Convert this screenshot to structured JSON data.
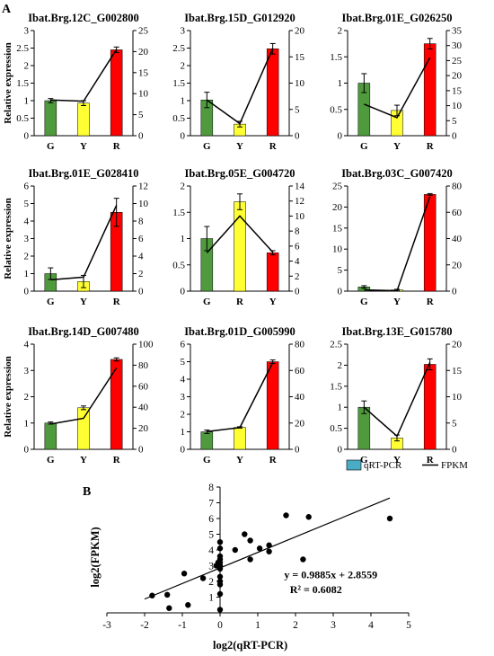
{
  "figure": {
    "panel_a_label": "A",
    "panel_b_label": "B",
    "legend": {
      "qrt_label": "qRT-PCR",
      "fpkm_label": "FPKM",
      "bar_legend_color": "#4bacc6"
    },
    "colors": {
      "G": "#4e9a3d",
      "Y": "#ffff33",
      "R": "#ff0000"
    }
  },
  "chart_data": [
    {
      "type": "bar",
      "title": "Ibat.Brg.12C_G002800",
      "ylabel": "Relative expression",
      "categories": [
        "G",
        "Y",
        "R"
      ],
      "bar_colors": [
        "G",
        "Y",
        "R"
      ],
      "values": [
        1.0,
        0.93,
        2.45
      ],
      "errors": [
        0.06,
        0.07,
        0.08
      ],
      "fpkm": [
        8.5,
        8.2,
        20.5
      ],
      "ylim": [
        0,
        3
      ],
      "yticks": [
        "0",
        "0.5",
        "1",
        "1.5",
        "2",
        "2.5",
        "3"
      ],
      "y2lim": [
        0,
        25
      ],
      "y2ticks": [
        "0",
        "5",
        "10",
        "15",
        "20",
        "25"
      ]
    },
    {
      "type": "bar",
      "title": "Ibat.Brg.15D_G012920",
      "ylabel": "",
      "categories": [
        "G",
        "Y",
        "R"
      ],
      "bar_colors": [
        "G",
        "Y",
        "R"
      ],
      "values": [
        1.02,
        0.33,
        2.48
      ],
      "errors": [
        0.22,
        0.08,
        0.15
      ],
      "fpkm": [
        6.8,
        2.3,
        16.6
      ],
      "ylim": [
        0,
        3
      ],
      "yticks": [
        "0",
        "0.5",
        "1",
        "1.5",
        "2",
        "2.5",
        "3"
      ],
      "y2lim": [
        0,
        20
      ],
      "y2ticks": [
        "0",
        "5",
        "10",
        "15",
        "20"
      ]
    },
    {
      "type": "bar",
      "title": "Ibat.Brg.01E_G026250",
      "ylabel": "",
      "categories": [
        "G",
        "Y",
        "R"
      ],
      "bar_colors": [
        "G",
        "Y",
        "R"
      ],
      "values": [
        1.0,
        0.48,
        1.75
      ],
      "errors": [
        0.18,
        0.1,
        0.1
      ],
      "fpkm": [
        10.5,
        6.0,
        26.0
      ],
      "ylim": [
        0,
        2
      ],
      "yticks": [
        "0",
        "0.5",
        "1",
        "1.5",
        "2"
      ],
      "y2lim": [
        0,
        35
      ],
      "y2ticks": [
        "0",
        "5",
        "10",
        "15",
        "20",
        "25",
        "30",
        "35"
      ]
    },
    {
      "type": "bar",
      "title": "Ibat.Brg.01E_G028410",
      "ylabel": "Relative expression",
      "categories": [
        "G",
        "Y",
        "R"
      ],
      "bar_colors": [
        "G",
        "Y",
        "R"
      ],
      "values": [
        1.0,
        0.55,
        4.5
      ],
      "errors": [
        0.33,
        0.35,
        0.8
      ],
      "fpkm": [
        1.3,
        1.6,
        9.8
      ],
      "ylim": [
        0,
        6
      ],
      "yticks": [
        "0",
        "1",
        "2",
        "3",
        "4",
        "5",
        "6"
      ],
      "y2lim": [
        0,
        12
      ],
      "y2ticks": [
        "0",
        "2",
        "4",
        "6",
        "8",
        "10",
        "12"
      ]
    },
    {
      "type": "bar",
      "title": "Ibat.Brg.05E_G004720",
      "ylabel": "",
      "categories": [
        "G",
        "R",
        "Y"
      ],
      "bar_colors": [
        "G",
        "Y",
        "R"
      ],
      "values": [
        1.0,
        1.7,
        0.73
      ],
      "errors": [
        0.23,
        0.15,
        0.04
      ],
      "fpkm": [
        5.1,
        10.0,
        5.2
      ],
      "ylim": [
        0,
        2
      ],
      "yticks": [
        "0",
        "0.5",
        "1",
        "1.5",
        "2"
      ],
      "y2lim": [
        0,
        14
      ],
      "y2ticks": [
        "0",
        "2",
        "4",
        "6",
        "8",
        "10",
        "12",
        "14"
      ]
    },
    {
      "type": "bar",
      "title": "Ibat.Brg.03C_G007420",
      "ylabel": "",
      "categories": [
        "G",
        "Y",
        "R"
      ],
      "bar_colors": [
        "G",
        "Y",
        "R"
      ],
      "values": [
        1.0,
        0.3,
        23.0
      ],
      "errors": [
        0.3,
        0.15,
        0.2
      ],
      "fpkm": [
        0.9,
        0.3,
        72.0
      ],
      "ylim": [
        0,
        25
      ],
      "yticks": [
        "0",
        "5",
        "10",
        "15",
        "20",
        "25"
      ],
      "y2lim": [
        0,
        80
      ],
      "y2ticks": [
        "0",
        "20",
        "40",
        "60",
        "80"
      ]
    },
    {
      "type": "bar",
      "title": "Ibat.Brg.14D_G007480",
      "ylabel": "Relative expression",
      "categories": [
        "G",
        "Y",
        "R"
      ],
      "bar_colors": [
        "G",
        "Y",
        "R"
      ],
      "values": [
        1.0,
        1.58,
        3.42
      ],
      "errors": [
        0.04,
        0.07,
        0.06
      ],
      "fpkm": [
        24.0,
        29.5,
        77.5
      ],
      "ylim": [
        0,
        4
      ],
      "yticks": [
        "0",
        "1",
        "2",
        "3",
        "4"
      ],
      "y2lim": [
        0,
        100
      ],
      "y2ticks": [
        "0",
        "20",
        "40",
        "60",
        "80",
        "100"
      ]
    },
    {
      "type": "bar",
      "title": "Ibat.Brg.01D_G005990",
      "ylabel": "",
      "categories": [
        "G",
        "Y",
        "R"
      ],
      "bar_colors": [
        "G",
        "Y",
        "R"
      ],
      "values": [
        1.0,
        1.25,
        5.0
      ],
      "errors": [
        0.1,
        0.04,
        0.1
      ],
      "fpkm": [
        13.5,
        16.5,
        66.0
      ],
      "ylim": [
        0,
        6
      ],
      "yticks": [
        "0",
        "1",
        "2",
        "3",
        "4",
        "5",
        "6"
      ],
      "y2lim": [
        0,
        80
      ],
      "y2ticks": [
        "0",
        "20",
        "40",
        "60",
        "80"
      ]
    },
    {
      "type": "bar",
      "title": "Ibat.Brg.13E_G015780",
      "ylabel": "",
      "categories": [
        "G",
        "Y",
        "R"
      ],
      "bar_colors": [
        "G",
        "Y",
        "R"
      ],
      "values": [
        1.0,
        0.27,
        2.02
      ],
      "errors": [
        0.15,
        0.07,
        0.13
      ],
      "fpkm": [
        8.0,
        2.5,
        16.5
      ],
      "ylim": [
        0,
        2.5
      ],
      "yticks": [
        "0",
        "0.5",
        "1",
        "1.5",
        "2",
        "2.5"
      ],
      "y2lim": [
        0,
        20
      ],
      "y2ticks": [
        "0",
        "5",
        "10",
        "15",
        "20"
      ]
    },
    {
      "type": "scatter",
      "title": "",
      "xlabel": "log2(qRT-PCR)",
      "ylabel": "log2(FPKM)",
      "xlim": [
        -3,
        5
      ],
      "ylim": [
        0,
        8
      ],
      "xticks": [
        "-3",
        "-2",
        "-1",
        "0",
        "1",
        "2",
        "3",
        "4",
        "5"
      ],
      "yticks": [
        "1",
        "2",
        "3",
        "4",
        "5",
        "6",
        "7",
        "8"
      ],
      "points": [
        [
          -1.8,
          1.1
        ],
        [
          -1.4,
          1.15
        ],
        [
          -1.35,
          0.3
        ],
        [
          -0.95,
          2.5
        ],
        [
          -0.85,
          0.5
        ],
        [
          -0.45,
          2.2
        ],
        [
          0.0,
          0.2
        ],
        [
          0.0,
          1.2
        ],
        [
          0.0,
          1.8
        ],
        [
          0.0,
          2.0
        ],
        [
          0.0,
          2.3
        ],
        [
          0.0,
          2.8
        ],
        [
          0.0,
          3.0
        ],
        [
          0.0,
          3.2
        ],
        [
          0.0,
          3.4
        ],
        [
          0.0,
          3.6
        ],
        [
          0.0,
          4.1
        ],
        [
          0.0,
          4.5
        ],
        [
          -0.1,
          3.0
        ],
        [
          -0.05,
          3.2
        ],
        [
          0.4,
          4.0
        ],
        [
          0.65,
          5.0
        ],
        [
          0.8,
          4.6
        ],
        [
          0.8,
          3.4
        ],
        [
          1.05,
          4.1
        ],
        [
          1.3,
          3.9
        ],
        [
          1.3,
          4.3
        ],
        [
          1.75,
          6.2
        ],
        [
          2.2,
          3.4
        ],
        [
          2.35,
          6.1
        ],
        [
          4.5,
          6.0
        ]
      ],
      "fit": {
        "slope": 0.9885,
        "intercept": 2.8559,
        "equation": "y = 0.9885x + 2.8559",
        "r2": "R² = 0.6082"
      }
    }
  ]
}
